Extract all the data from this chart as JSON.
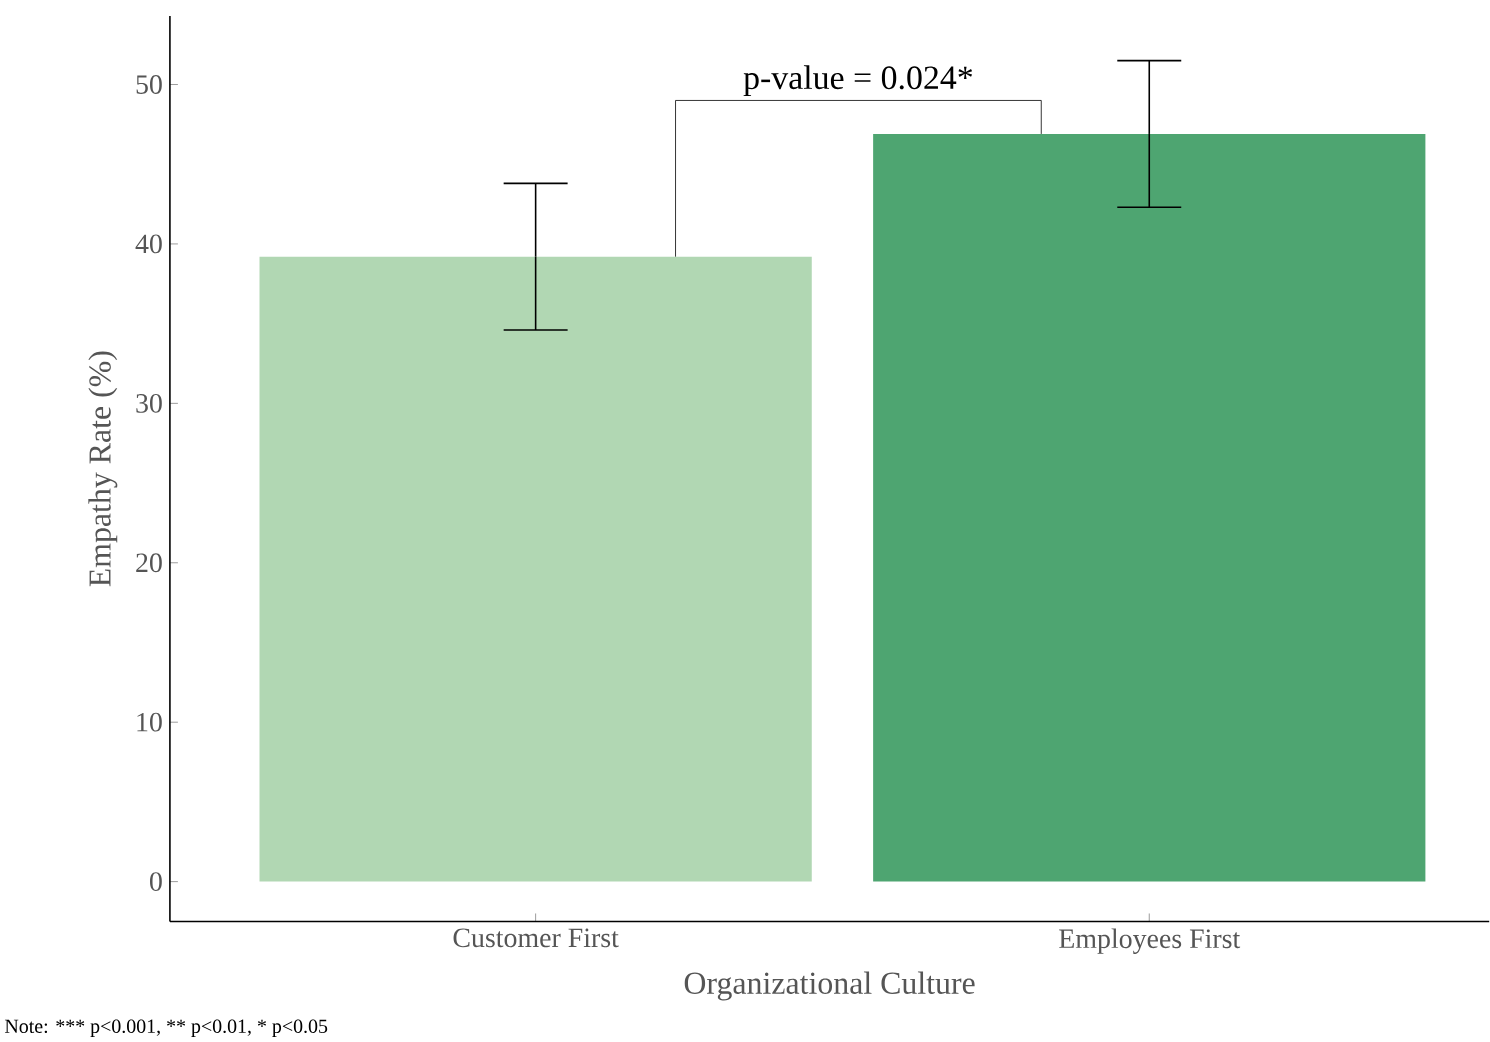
{
  "chart_data": {
    "type": "bar",
    "xlabel": "Organizational Culture",
    "ylabel": "Empathy Rate (%)",
    "categories": [
      "Customer First",
      "Employees First"
    ],
    "values": [
      39.2,
      46.9
    ],
    "errors": [
      4.6,
      4.6
    ],
    "colors": [
      "#b1d7b3",
      "#4ea571"
    ],
    "ylim": [
      -2.5,
      54.3
    ],
    "yticks": [
      0,
      10,
      20,
      30,
      40,
      50
    ],
    "grid": false,
    "annotations": [
      "p-value = 0.024*",
      "Note: *** p<0.001, ** p<0.01, * p<0.05"
    ]
  }
}
